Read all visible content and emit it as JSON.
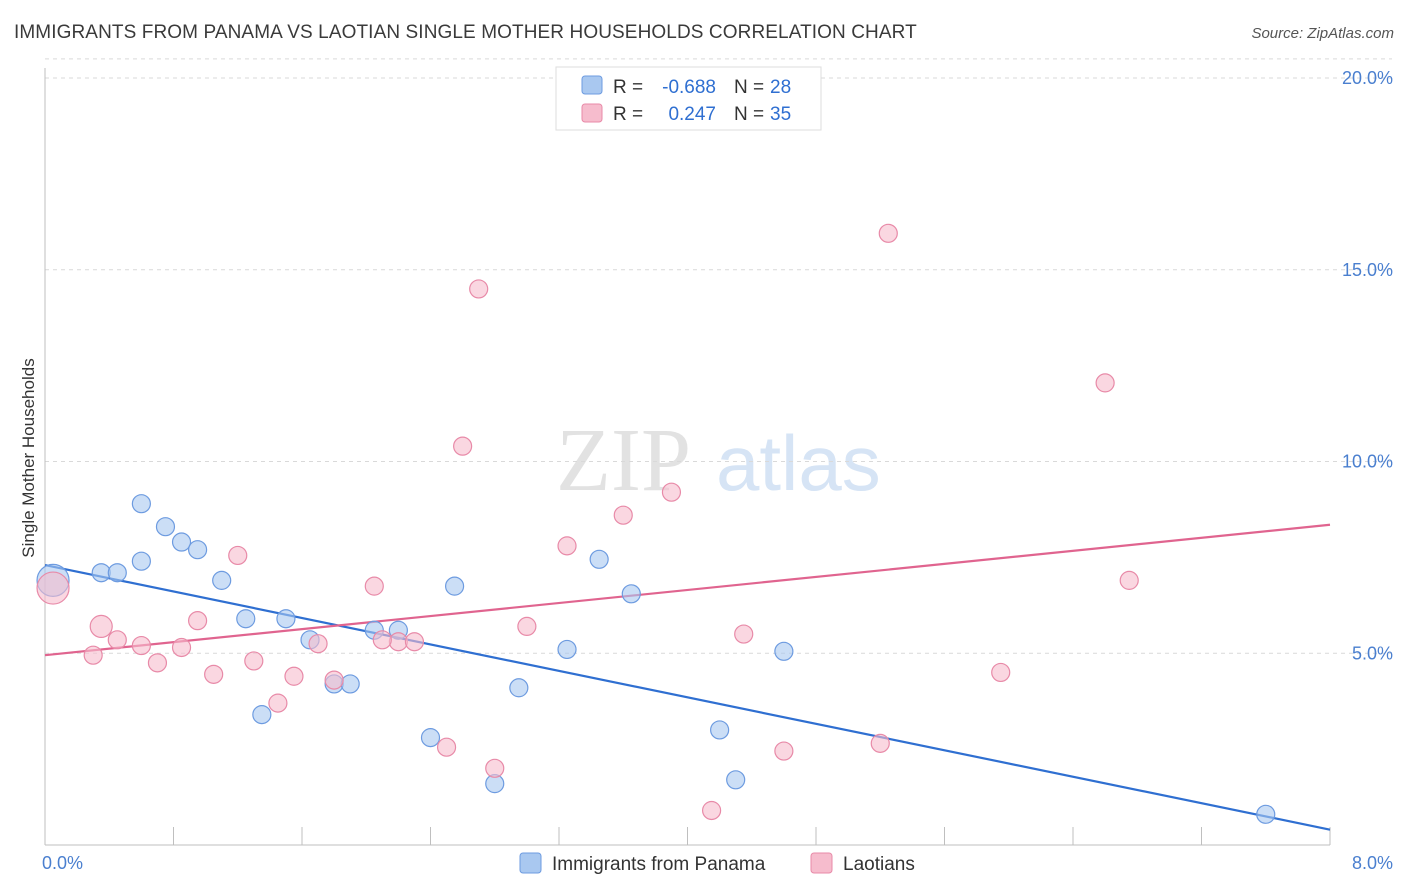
{
  "header": {
    "title": "IMMIGRANTS FROM PANAMA VS LAOTIAN SINGLE MOTHER HOUSEHOLDS CORRELATION CHART",
    "source": "Source: ZipAtlas.com"
  },
  "watermark": {
    "zip": "ZIP",
    "atlas": "atlas"
  },
  "legend": {
    "items": [
      {
        "r_label": "R =",
        "r_value": "-0.688",
        "n_label": "N =",
        "n_value": "28",
        "color": "#a9c8f0",
        "stroke": "#6d9be0"
      },
      {
        "r_label": "R =",
        "r_value": "0.247",
        "n_label": "N =",
        "n_value": "35",
        "color": "#f6bccd",
        "stroke": "#e88aa8"
      }
    ]
  },
  "bottom_legend": [
    "Immigrants from Panama",
    "Laotians"
  ],
  "chart_data": {
    "type": "scatter",
    "title": "IMMIGRANTS FROM PANAMA VS LAOTIAN SINGLE MOTHER HOUSEHOLDS CORRELATION CHART",
    "ylabel": "Single Mother Households",
    "xlim": [
      0,
      8
    ],
    "ylim": [
      0,
      20.5
    ],
    "x_tick_labels": [
      "0.0%",
      "8.0%"
    ],
    "y_ticks": [
      5,
      10,
      15,
      20
    ],
    "y_tick_labels": [
      "5.0%",
      "10.0%",
      "15.0%",
      "20.0%"
    ],
    "grid": true,
    "legend_position": "top-center",
    "series": [
      {
        "name": "Immigrants from Panama",
        "color": "#a9c8f0",
        "stroke": "#6d9be0",
        "line_color": "#2f6fd1",
        "trend": [
          [
            0,
            7.3
          ],
          [
            8,
            0.4
          ]
        ],
        "points": [
          [
            0.05,
            6.9,
            16
          ],
          [
            0.35,
            7.1,
            9
          ],
          [
            0.45,
            7.1,
            9
          ],
          [
            0.6,
            7.4,
            9
          ],
          [
            0.6,
            8.9,
            9
          ],
          [
            0.75,
            8.3,
            9
          ],
          [
            0.85,
            7.9,
            9
          ],
          [
            0.95,
            7.7,
            9
          ],
          [
            1.1,
            6.9,
            9
          ],
          [
            1.25,
            5.9,
            9
          ],
          [
            1.35,
            3.4,
            9
          ],
          [
            1.5,
            5.9,
            9
          ],
          [
            1.65,
            5.35,
            9
          ],
          [
            1.8,
            4.2,
            9
          ],
          [
            1.9,
            4.2,
            9
          ],
          [
            2.05,
            5.6,
            9
          ],
          [
            2.2,
            5.6,
            9
          ],
          [
            2.4,
            2.8,
            9
          ],
          [
            2.55,
            6.75,
            9
          ],
          [
            2.8,
            1.6,
            9
          ],
          [
            2.95,
            4.1,
            9
          ],
          [
            3.25,
            5.1,
            9
          ],
          [
            3.45,
            7.45,
            9
          ],
          [
            3.65,
            6.55,
            9
          ],
          [
            4.2,
            3.0,
            9
          ],
          [
            4.3,
            1.7,
            9
          ],
          [
            4.6,
            5.05,
            9
          ],
          [
            7.6,
            0.8,
            9
          ]
        ]
      },
      {
        "name": "Laotians",
        "color": "#f6bccd",
        "stroke": "#e88aa8",
        "line_color": "#e0648f",
        "trend": [
          [
            0,
            4.95
          ],
          [
            8,
            8.35
          ]
        ],
        "points": [
          [
            0.05,
            6.7,
            16
          ],
          [
            0.35,
            5.7,
            11
          ],
          [
            0.3,
            4.95,
            9
          ],
          [
            0.45,
            5.35,
            9
          ],
          [
            0.6,
            5.2,
            9
          ],
          [
            0.7,
            4.75,
            9
          ],
          [
            0.85,
            5.15,
            9
          ],
          [
            0.95,
            5.85,
            9
          ],
          [
            1.05,
            4.45,
            9
          ],
          [
            1.2,
            7.55,
            9
          ],
          [
            1.3,
            4.8,
            9
          ],
          [
            1.45,
            3.7,
            9
          ],
          [
            1.55,
            4.4,
            9
          ],
          [
            1.7,
            5.25,
            9
          ],
          [
            1.8,
            4.3,
            9
          ],
          [
            2.05,
            6.75,
            9
          ],
          [
            2.2,
            5.3,
            9
          ],
          [
            2.3,
            5.3,
            9
          ],
          [
            2.5,
            2.55,
            9
          ],
          [
            2.6,
            10.4,
            9
          ],
          [
            2.7,
            14.5,
            9
          ],
          [
            2.8,
            2.0,
            9
          ],
          [
            3.0,
            5.7,
            9
          ],
          [
            3.25,
            7.8,
            9
          ],
          [
            3.6,
            8.6,
            9
          ],
          [
            3.9,
            9.2,
            9
          ],
          [
            4.15,
            0.9,
            9
          ],
          [
            4.35,
            5.5,
            9
          ],
          [
            4.6,
            2.45,
            9
          ],
          [
            5.2,
            2.65,
            9
          ],
          [
            5.25,
            15.95,
            9
          ],
          [
            5.95,
            4.5,
            9
          ],
          [
            6.6,
            12.05,
            9
          ],
          [
            6.75,
            6.9,
            9
          ],
          [
            2.1,
            5.35,
            9
          ]
        ]
      }
    ]
  }
}
